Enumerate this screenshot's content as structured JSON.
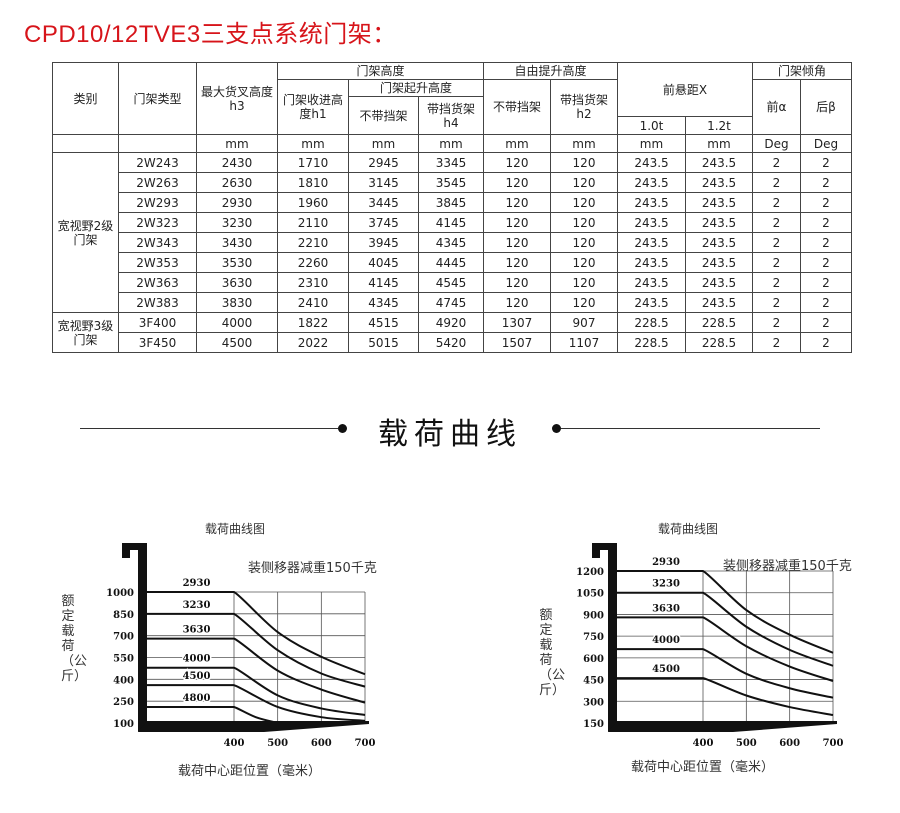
{
  "title": "CPD10/12TVE3三支点系统门架：",
  "table": {
    "headers": {
      "category": "类别",
      "mast_type": "门架类型",
      "max_fork_height": "最大货叉高度",
      "max_fork_height_sym": "h3",
      "mast_height": "门架高度",
      "mast_lowered": "门架收进高",
      "mast_lowered2": "度h1",
      "mast_raised": "门架起升高度",
      "no_backrest": "不带挡架",
      "with_backrest": "带挡货架",
      "h4": "h4",
      "free_lift": "自由提升高度",
      "free_no_backrest": "不带挡架",
      "free_with_backrest": "带挡货架",
      "h2": "h2",
      "front_overhang": "前悬距X",
      "t10": "1.0t",
      "t12": "1.2t",
      "tilt": "门架倾角",
      "front_tilt": "前α",
      "rear_tilt": "后β",
      "units": [
        "mm",
        "mm",
        "mm",
        "mm",
        "mm",
        "mm",
        "mm",
        "mm",
        "Deg",
        "Deg"
      ]
    },
    "groups": [
      {
        "category": "宽视野2级门架",
        "rows": [
          [
            "2W243",
            "2430",
            "1710",
            "2945",
            "3345",
            "120",
            "120",
            "243.5",
            "243.5",
            "2",
            "2"
          ],
          [
            "2W263",
            "2630",
            "1810",
            "3145",
            "3545",
            "120",
            "120",
            "243.5",
            "243.5",
            "2",
            "2"
          ],
          [
            "2W293",
            "2930",
            "1960",
            "3445",
            "3845",
            "120",
            "120",
            "243.5",
            "243.5",
            "2",
            "2"
          ],
          [
            "2W323",
            "3230",
            "2110",
            "3745",
            "4145",
            "120",
            "120",
            "243.5",
            "243.5",
            "2",
            "2"
          ],
          [
            "2W343",
            "3430",
            "2210",
            "3945",
            "4345",
            "120",
            "120",
            "243.5",
            "243.5",
            "2",
            "2"
          ],
          [
            "2W353",
            "3530",
            "2260",
            "4045",
            "4445",
            "120",
            "120",
            "243.5",
            "243.5",
            "2",
            "2"
          ],
          [
            "2W363",
            "3630",
            "2310",
            "4145",
            "4545",
            "120",
            "120",
            "243.5",
            "243.5",
            "2",
            "2"
          ],
          [
            "2W383",
            "3830",
            "2410",
            "4345",
            "4745",
            "120",
            "120",
            "243.5",
            "243.5",
            "2",
            "2"
          ]
        ]
      },
      {
        "category": "宽视野3级门架",
        "rows": [
          [
            "3F400",
            "4000",
            "1822",
            "4515",
            "4920",
            "1307",
            "907",
            "228.5",
            "228.5",
            "2",
            "2"
          ],
          [
            "3F450",
            "4500",
            "2022",
            "5015",
            "5420",
            "1507",
            "1107",
            "228.5",
            "228.5",
            "2",
            "2"
          ]
        ]
      }
    ]
  },
  "section_heading": "载荷曲线",
  "chart_data": [
    {
      "type": "line",
      "title": "载荷曲线图",
      "note": "装侧移器减重150千克",
      "xlabel": "载荷中心距位置（毫米）",
      "ylabel": "额定载荷（公斤）",
      "x_ticks": [
        400,
        500,
        600,
        700
      ],
      "y_ticks": [
        1000,
        850,
        700,
        550,
        400,
        250,
        100
      ],
      "ylim": [
        100,
        1000
      ],
      "xlim": [
        400,
        700
      ],
      "grid": true,
      "series": [
        {
          "name": "2930",
          "x": [
            400,
            500,
            600,
            700
          ],
          "y": [
            1000,
            725,
            555,
            435
          ]
        },
        {
          "name": "3230",
          "x": [
            400,
            500,
            600,
            700
          ],
          "y": [
            850,
            600,
            440,
            350
          ]
        },
        {
          "name": "3630",
          "x": [
            400,
            500,
            600,
            700
          ],
          "y": [
            680,
            460,
            330,
            240
          ]
        },
        {
          "name": "4000",
          "x": [
            400,
            500,
            600,
            700
          ],
          "y": [
            480,
            290,
            200,
            155
          ]
        },
        {
          "name": "4500",
          "x": [
            400,
            500,
            600,
            700
          ],
          "y": [
            360,
            210,
            140,
            115
          ]
        },
        {
          "name": "4800",
          "x": [
            400,
            450,
            500
          ],
          "y": [
            210,
            140,
            100
          ]
        }
      ]
    },
    {
      "type": "line",
      "title": "载荷曲线图",
      "note": "装侧移器减重150千克",
      "xlabel": "载荷中心距位置（毫米）",
      "ylabel": "额定载荷（公斤）",
      "x_ticks": [
        400,
        500,
        600,
        700
      ],
      "y_ticks": [
        1200,
        1050,
        900,
        750,
        600,
        450,
        300,
        150
      ],
      "ylim": [
        150,
        1200
      ],
      "xlim": [
        400,
        700
      ],
      "grid": true,
      "series": [
        {
          "name": "2930",
          "x": [
            400,
            500,
            600,
            700
          ],
          "y": [
            1200,
            930,
            760,
            635
          ]
        },
        {
          "name": "3230",
          "x": [
            400,
            500,
            600,
            700
          ],
          "y": [
            1050,
            815,
            655,
            545
          ]
        },
        {
          "name": "3630",
          "x": [
            400,
            500,
            600,
            700
          ],
          "y": [
            880,
            680,
            540,
            440
          ]
        },
        {
          "name": "4000",
          "x": [
            400,
            500,
            600,
            700
          ],
          "y": [
            660,
            490,
            390,
            325
          ]
        },
        {
          "name": "4500",
          "x": [
            400,
            500,
            600,
            700
          ],
          "y": [
            460,
            340,
            260,
            205
          ]
        }
      ]
    }
  ]
}
